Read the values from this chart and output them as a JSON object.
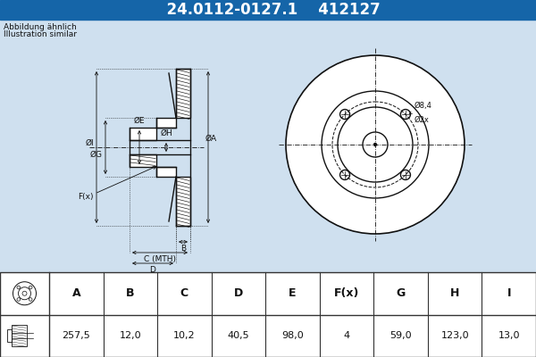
{
  "title_part_number": "24.0112-0127.1",
  "title_ref_number": "412127",
  "title_bg_color": "#1565a8",
  "title_text_color": "#ffffff",
  "bg_color": "#cfe0ef",
  "note_line1": "Abbildung ähnlich",
  "note_line2": "Illustration similar",
  "table_headers": [
    "A",
    "B",
    "C",
    "D",
    "E",
    "F(x)",
    "G",
    "H",
    "I"
  ],
  "table_values": [
    "257,5",
    "12,0",
    "10,2",
    "40,5",
    "98,0",
    "4",
    "59,0",
    "123,0",
    "13,0"
  ],
  "table_header_bg": "#ffffff",
  "table_value_bg": "#ffffff",
  "table_border_color": "#333333",
  "line_color": "#111111",
  "watermark_color": "#b8cfe0",
  "font_size_title": 12,
  "font_size_note": 6.5,
  "font_size_dim": 6.5,
  "font_size_table_header": 9,
  "font_size_table_value": 8
}
